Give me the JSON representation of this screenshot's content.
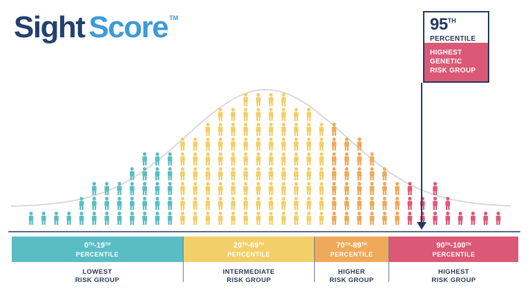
{
  "brand": {
    "part1": "Sight",
    "part2": "Score",
    "tm": "TM"
  },
  "callout": {
    "value": "95",
    "suffix": "TH",
    "label": "PERCENTILE",
    "lines": [
      "HIGHEST",
      "GENETIC",
      "RISK GROUP"
    ]
  },
  "colors": {
    "teal": "#5bbdc4",
    "yellow": "#f3cf69",
    "orange": "#eea95a",
    "pink": "#dc5877",
    "navy": "#22375e",
    "curve": "#d9d9d9"
  },
  "segments": [
    {
      "start": "0",
      "start_sup": "TH",
      "sep": "-",
      "end": "19",
      "end_sup": "TH",
      "label": "PERCENTILE",
      "group": [
        "LOWEST",
        "RISK GROUP"
      ],
      "color": "#5bbdc4"
    },
    {
      "start": "20",
      "start_sup": "TH",
      "sep": "-",
      "end": "69",
      "end_sup": "TH",
      "label": "PERCENTILE",
      "group": [
        "INTERMEDIATE",
        "RISK GROUP"
      ],
      "color": "#f3cf69"
    },
    {
      "start": "70",
      "start_sup": "TH",
      "sep": "-",
      "end": "89",
      "end_sup": "TH",
      "label": "PERCENTILE",
      "group": [
        "HIGHER",
        "RISK GROUP"
      ],
      "color": "#eea95a"
    },
    {
      "start": "90",
      "start_sup": "TH",
      "sep": "-",
      "end": "100",
      "end_sup": "TH",
      "label": "PERCENTILE",
      "group": [
        "HIGHEST",
        "RISK GROUP"
      ],
      "color": "#dc5877"
    }
  ],
  "population_columns": [
    {
      "group": 0,
      "count": 1
    },
    {
      "group": 0,
      "count": 1
    },
    {
      "group": 0,
      "count": 1
    },
    {
      "group": 0,
      "count": 1
    },
    {
      "group": 0,
      "count": 2
    },
    {
      "group": 0,
      "count": 3
    },
    {
      "group": 0,
      "count": 3
    },
    {
      "group": 0,
      "count": 3
    },
    {
      "group": 0,
      "count": 4
    },
    {
      "group": 0,
      "count": 5
    },
    {
      "group": 0,
      "count": 5
    },
    {
      "group": 0,
      "count": 5
    },
    {
      "group": 1,
      "count": 6
    },
    {
      "group": 1,
      "count": 6
    },
    {
      "group": 1,
      "count": 7
    },
    {
      "group": 1,
      "count": 8
    },
    {
      "group": 1,
      "count": 8
    },
    {
      "group": 1,
      "count": 9
    },
    {
      "group": 1,
      "count": 9
    },
    {
      "group": 1,
      "count": 9
    },
    {
      "group": 1,
      "count": 9
    },
    {
      "group": 1,
      "count": 8
    },
    {
      "group": 1,
      "count": 8
    },
    {
      "group": 1,
      "count": 7
    },
    {
      "group": 2,
      "count": 7
    },
    {
      "group": 2,
      "count": 6
    },
    {
      "group": 2,
      "count": 6
    },
    {
      "group": 2,
      "count": 5
    },
    {
      "group": 2,
      "count": 4
    },
    {
      "group": 2,
      "count": 3
    },
    {
      "group": 3,
      "count": 3
    },
    {
      "group": 3,
      "count": 2
    },
    {
      "group": 3,
      "count": 3
    },
    {
      "group": 3,
      "count": 2
    },
    {
      "group": 3,
      "count": 1
    },
    {
      "group": 3,
      "count": 1
    },
    {
      "group": 3,
      "count": 1
    },
    {
      "group": 3,
      "count": 1
    }
  ]
}
